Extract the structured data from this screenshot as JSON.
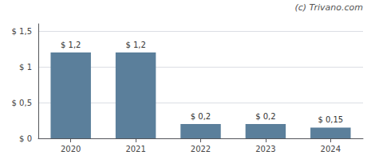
{
  "chart_data": {
    "type": "bar",
    "categories": [
      "2020",
      "2021",
      "2022",
      "2023",
      "2024"
    ],
    "values": [
      1.2,
      1.2,
      0.2,
      0.2,
      0.15
    ],
    "value_labels": [
      "$ 1,2",
      "$ 1,2",
      "$ 0,2",
      "$ 0,2",
      "$ 0,15"
    ],
    "data_labels": true,
    "color": "#5b7f9b",
    "ylim": [
      0,
      1.6
    ],
    "yticks": [
      {
        "value": 0,
        "label": "$ 0"
      },
      {
        "value": 0.5,
        "label": "$ 0,5"
      },
      {
        "value": 1.0,
        "label": "$ 1"
      },
      {
        "value": 1.5,
        "label": "$ 1,5"
      }
    ],
    "grid": true,
    "annotations": [
      "(c) Trivano.com"
    ]
  }
}
